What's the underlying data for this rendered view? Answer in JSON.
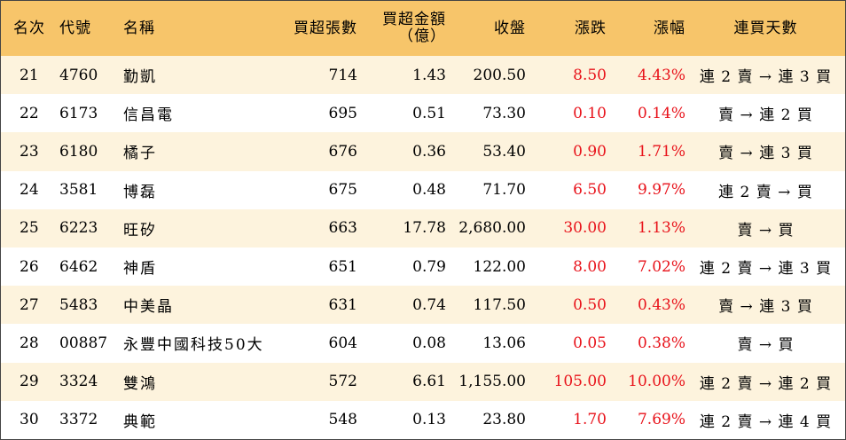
{
  "columns": {
    "rank": "名次",
    "code": "代號",
    "name": "名稱",
    "lots": "買超張數",
    "amount_line1": "買超金額",
    "amount_line2": "（億）",
    "close": "收盤",
    "change": "漲跌",
    "change_pct": "漲幅",
    "streak": "連買天數"
  },
  "colors": {
    "header_bg": "#F7C56A",
    "stripe_bg": "#FDF3DD",
    "positive": "#E8121A"
  },
  "rows": [
    {
      "rank": "21",
      "code": "4760",
      "name": "勤凱",
      "lots": "714",
      "amount": "1.43",
      "close": "200.50",
      "change": "8.50",
      "change_pct": "4.43%",
      "streak": "連 2 賣 → 連 3 買"
    },
    {
      "rank": "22",
      "code": "6173",
      "name": "信昌電",
      "lots": "695",
      "amount": "0.51",
      "close": "73.30",
      "change": "0.10",
      "change_pct": "0.14%",
      "streak": "賣 → 連 2 買"
    },
    {
      "rank": "23",
      "code": "6180",
      "name": "橘子",
      "lots": "676",
      "amount": "0.36",
      "close": "53.40",
      "change": "0.90",
      "change_pct": "1.71%",
      "streak": "賣 → 連 3 買"
    },
    {
      "rank": "24",
      "code": "3581",
      "name": "博磊",
      "lots": "675",
      "amount": "0.48",
      "close": "71.70",
      "change": "6.50",
      "change_pct": "9.97%",
      "streak": "連 2 賣 → 買"
    },
    {
      "rank": "25",
      "code": "6223",
      "name": "旺矽",
      "lots": "663",
      "amount": "17.78",
      "close": "2,680.00",
      "change": "30.00",
      "change_pct": "1.13%",
      "streak": "賣 → 買"
    },
    {
      "rank": "26",
      "code": "6462",
      "name": "神盾",
      "lots": "651",
      "amount": "0.79",
      "close": "122.00",
      "change": "8.00",
      "change_pct": "7.02%",
      "streak": "連 2 賣 → 連 3 買"
    },
    {
      "rank": "27",
      "code": "5483",
      "name": "中美晶",
      "lots": "631",
      "amount": "0.74",
      "close": "117.50",
      "change": "0.50",
      "change_pct": "0.43%",
      "streak": "賣 → 連 3 買"
    },
    {
      "rank": "28",
      "code": "00887",
      "name": "永豐中國科技50大",
      "lots": "604",
      "amount": "0.08",
      "close": "13.06",
      "change": "0.05",
      "change_pct": "0.38%",
      "streak": "賣 → 買"
    },
    {
      "rank": "29",
      "code": "3324",
      "name": "雙鴻",
      "lots": "572",
      "amount": "6.61",
      "close": "1,155.00",
      "change": "105.00",
      "change_pct": "10.00%",
      "streak": "連 2 賣 → 連 2 買"
    },
    {
      "rank": "30",
      "code": "3372",
      "name": "典範",
      "lots": "548",
      "amount": "0.13",
      "close": "23.80",
      "change": "1.70",
      "change_pct": "7.69%",
      "streak": "連 2 賣 → 連 4 買"
    }
  ]
}
